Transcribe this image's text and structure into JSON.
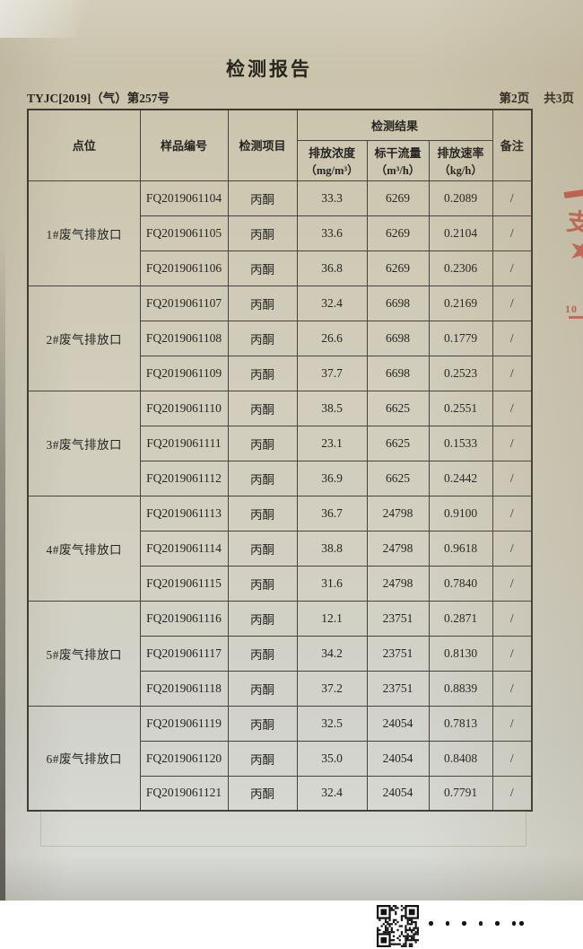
{
  "page": {
    "title": "检测报告",
    "doc_number": "TYJC[2019]（气）第257号",
    "page_current": "第2页",
    "page_total": "共3页"
  },
  "table": {
    "headers": {
      "point": "点位",
      "sample_no": "样品编号",
      "test_item": "检测项目",
      "results": "检测结果",
      "concentration": "排放浓度",
      "concentration_unit": "（mg/m³）",
      "flow": "标干流量",
      "flow_unit": "（m³/h）",
      "rate": "排放速率",
      "rate_unit": "（kg/h）",
      "remark": "备注"
    },
    "groups": [
      {
        "point": "1#废气排放口",
        "rows": [
          {
            "sample": "FQ2019061104",
            "item": "丙酮",
            "conc": "33.3",
            "flow": "6269",
            "rate": "0.2089",
            "remark": "/"
          },
          {
            "sample": "FQ2019061105",
            "item": "丙酮",
            "conc": "33.6",
            "flow": "6269",
            "rate": "0.2104",
            "remark": "/"
          },
          {
            "sample": "FQ2019061106",
            "item": "丙酮",
            "conc": "36.8",
            "flow": "6269",
            "rate": "0.2306",
            "remark": "/"
          }
        ]
      },
      {
        "point": "2#废气排放口",
        "rows": [
          {
            "sample": "FQ2019061107",
            "item": "丙酮",
            "conc": "32.4",
            "flow": "6698",
            "rate": "0.2169",
            "remark": "/"
          },
          {
            "sample": "FQ2019061108",
            "item": "丙酮",
            "conc": "26.6",
            "flow": "6698",
            "rate": "0.1779",
            "remark": "/"
          },
          {
            "sample": "FQ2019061109",
            "item": "丙酮",
            "conc": "37.7",
            "flow": "6698",
            "rate": "0.2523",
            "remark": "/"
          }
        ]
      },
      {
        "point": "3#废气排放口",
        "rows": [
          {
            "sample": "FQ2019061110",
            "item": "丙酮",
            "conc": "38.5",
            "flow": "6625",
            "rate": "0.2551",
            "remark": "/"
          },
          {
            "sample": "FQ2019061111",
            "item": "丙酮",
            "conc": "23.1",
            "flow": "6625",
            "rate": "0.1533",
            "remark": "/"
          },
          {
            "sample": "FQ2019061112",
            "item": "丙酮",
            "conc": "36.9",
            "flow": "6625",
            "rate": "0.2442",
            "remark": "/"
          }
        ]
      },
      {
        "point": "4#废气排放口",
        "rows": [
          {
            "sample": "FQ2019061113",
            "item": "丙酮",
            "conc": "36.7",
            "flow": "24798",
            "rate": "0.9100",
            "remark": "/"
          },
          {
            "sample": "FQ2019061114",
            "item": "丙酮",
            "conc": "38.8",
            "flow": "24798",
            "rate": "0.9618",
            "remark": "/"
          },
          {
            "sample": "FQ2019061115",
            "item": "丙酮",
            "conc": "31.6",
            "flow": "24798",
            "rate": "0.7840",
            "remark": "/"
          }
        ]
      },
      {
        "point": "5#废气排放口",
        "rows": [
          {
            "sample": "FQ2019061116",
            "item": "丙酮",
            "conc": "12.1",
            "flow": "23751",
            "rate": "0.2871",
            "remark": "/"
          },
          {
            "sample": "FQ2019061117",
            "item": "丙酮",
            "conc": "34.2",
            "flow": "23751",
            "rate": "0.8130",
            "remark": "/"
          },
          {
            "sample": "FQ2019061118",
            "item": "丙酮",
            "conc": "37.2",
            "flow": "23751",
            "rate": "0.8839",
            "remark": "/"
          }
        ]
      },
      {
        "point": "6#废气排放口",
        "rows": [
          {
            "sample": "FQ2019061119",
            "item": "丙酮",
            "conc": "32.5",
            "flow": "24054",
            "rate": "0.7813",
            "remark": "/"
          },
          {
            "sample": "FQ2019061120",
            "item": "丙酮",
            "conc": "35.0",
            "flow": "24054",
            "rate": "0.8408",
            "remark": "/"
          },
          {
            "sample": "FQ2019061121",
            "item": "丙酮",
            "conc": "32.4",
            "flow": "24054",
            "rate": "0.7791",
            "remark": "/"
          }
        ]
      }
    ]
  },
  "stamp": {
    "fragments": [
      "支",
      "★",
      "（",
      "10"
    ]
  },
  "colors": {
    "paper": "#d1ccba",
    "stamp_red": "#c6483a",
    "text": "#262420"
  }
}
